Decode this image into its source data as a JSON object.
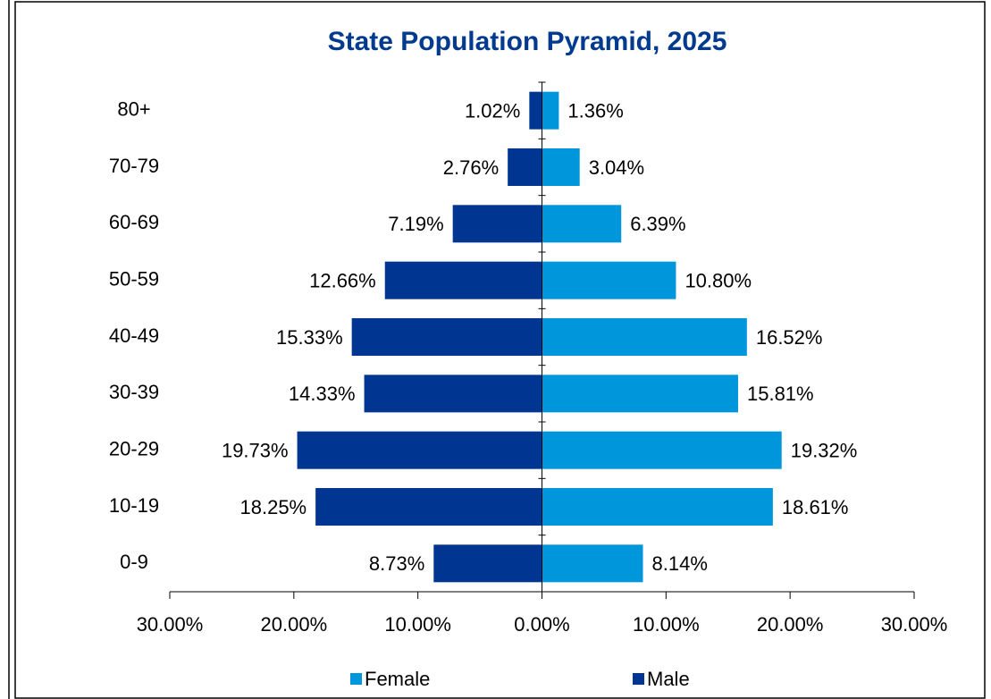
{
  "chart_data": {
    "type": "pyramid",
    "title": "State Population Pyramid, 2025",
    "categories": [
      "80+",
      "70-79",
      "60-69",
      "50-59",
      "40-49",
      "30-39",
      "20-29",
      "10-19",
      "0-9"
    ],
    "series": [
      {
        "name": "Female",
        "color": "#0096dc",
        "side": "right",
        "values": [
          1.36,
          3.04,
          6.39,
          10.8,
          16.52,
          15.81,
          19.32,
          18.61,
          8.14
        ],
        "value_labels": [
          "1.36%",
          "3.04%",
          "6.39%",
          "10.80%",
          "16.52%",
          "15.81%",
          "19.32%",
          "18.61%",
          "8.14%"
        ]
      },
      {
        "name": "Male",
        "color": "#003591",
        "side": "left",
        "values": [
          1.02,
          2.76,
          7.19,
          12.66,
          15.33,
          14.33,
          19.73,
          18.25,
          8.73
        ],
        "value_labels": [
          "1.02%",
          "2.76%",
          "7.19%",
          "12.66%",
          "15.33%",
          "14.33%",
          "19.73%",
          "18.25%",
          "8.73%"
        ]
      }
    ],
    "xlim": [
      -30,
      30
    ],
    "xticks": [
      {
        "value": -30,
        "label": "30.00%"
      },
      {
        "value": -20,
        "label": "20.00%"
      },
      {
        "value": -10,
        "label": "10.00%"
      },
      {
        "value": 0,
        "label": "0.00%"
      },
      {
        "value": 10,
        "label": "10.00%"
      },
      {
        "value": 20,
        "label": "20.00%"
      },
      {
        "value": 30,
        "label": "30.00%"
      }
    ],
    "legend": "bottom"
  }
}
